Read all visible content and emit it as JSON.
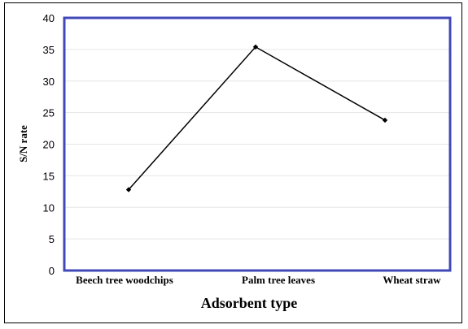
{
  "chart_data": {
    "type": "line",
    "categories": [
      "Beech tree woodchips",
      "Palm tree leaves",
      "Wheat straw"
    ],
    "series": [
      {
        "values": [
          12.8,
          35.4,
          23.8
        ]
      }
    ],
    "xlabel": "Adsorbent type",
    "ylabel": "S/N rate",
    "ylim": [
      0,
      40
    ],
    "yticks": [
      0,
      5,
      10,
      15,
      20,
      25,
      30,
      35,
      40
    ],
    "grid": true,
    "plot_border_color": "#4149b8",
    "line_color": "#000000",
    "gridline_color": "#e6e6e6"
  }
}
